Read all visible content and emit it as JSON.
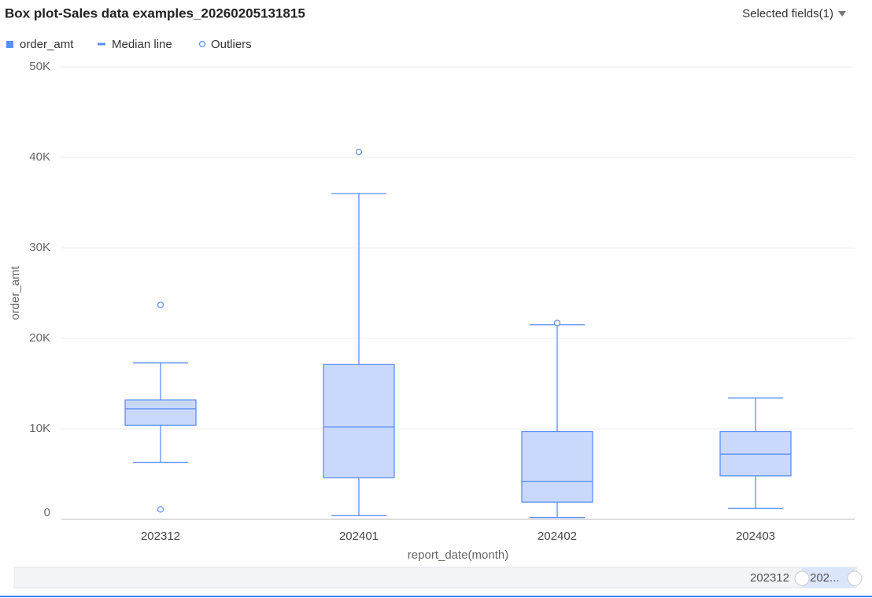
{
  "chart_data": {
    "type": "box",
    "title": "Box plot-Sales data examples_20260205131815",
    "x_label": "report_date(month)",
    "y_label": "order_amt",
    "categories": [
      "202312",
      "202401",
      "202402",
      "202403"
    ],
    "series": [
      {
        "name": "order_amt",
        "color": "#5b8ff9",
        "fill": "#c8d9fb",
        "whisker_low": [
          6300,
          400,
          200,
          1200
        ],
        "q1": [
          10400,
          4600,
          1900,
          4800
        ],
        "median": [
          12200,
          10200,
          4200,
          7200
        ],
        "q3": [
          13200,
          17100,
          9700,
          9700
        ],
        "whisker_high": [
          17300,
          36000,
          21500,
          13400
        ],
        "outliers": [
          [
            23700,
            1100
          ],
          [
            40600
          ],
          [
            21700
          ],
          []
        ]
      }
    ],
    "median_name": "Median line",
    "outlier_name": "Outliers",
    "ylim": [
      0,
      50000
    ],
    "yticks": [
      0,
      {
        "value": 10000,
        "label": "10K"
      },
      {
        "value": 20000,
        "label": "20K"
      },
      {
        "value": 30000,
        "label": "30K"
      },
      {
        "value": 40000,
        "label": "40K"
      },
      {
        "value": 50000,
        "label": "50K"
      }
    ],
    "grid": true
  },
  "controls": {
    "selected_fields": "Selected fields(1)"
  },
  "slider": {
    "start_label": "202312",
    "end_label": "202..."
  }
}
